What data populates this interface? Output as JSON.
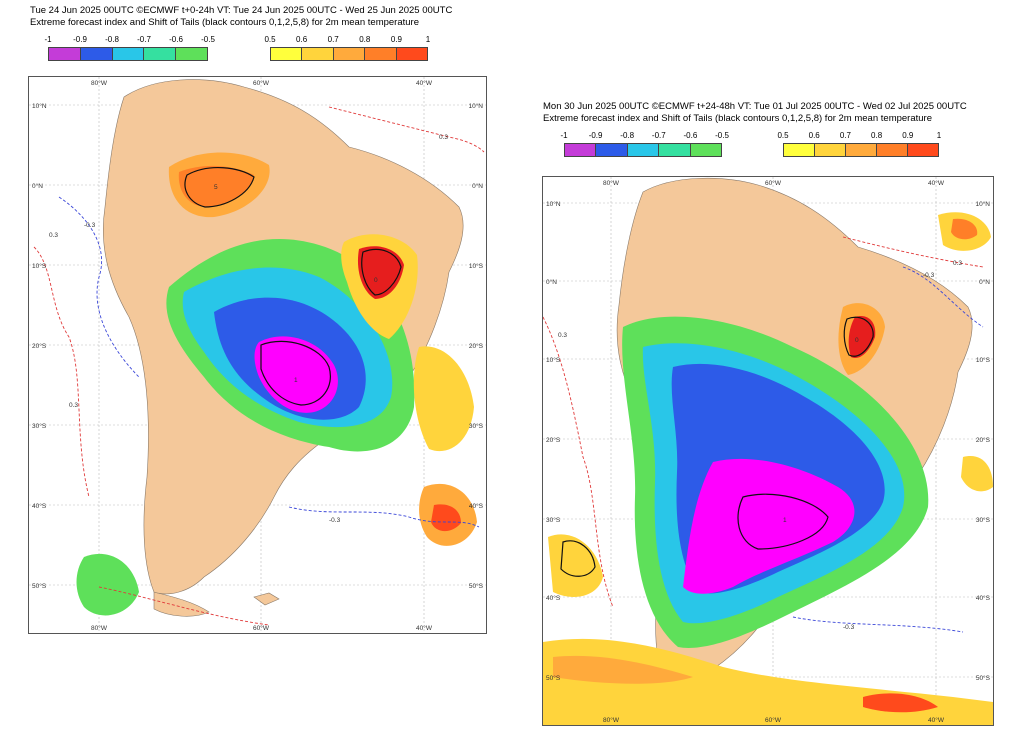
{
  "left": {
    "title_line1": "Tue 24 Jun 2025 00UTC ©ECMWF t+0-24h   VT: Tue 24 Jun 2025 00UTC - Wed 25 Jun 2025 00UTC",
    "title_line2": "Extreme forecast index and Shift of Tails (black contours 0,1,2,5,8) for 2m mean temperature",
    "lon_labels": [
      "80°W",
      "60°W",
      "40°W"
    ],
    "lat_labels": [
      "10°N",
      "0°N",
      "10°S",
      "20°S",
      "30°S",
      "40°S",
      "50°S"
    ],
    "contour_labels": [
      "-0.3",
      "0.3",
      "0.3",
      "0.3",
      "1",
      "0",
      "5",
      "-0.3"
    ]
  },
  "right": {
    "title_line1": "Mon 30 Jun 2025 00UTC ©ECMWF t+24-48h  VT: Tue 01 Jul 2025 00UTC - Wed 02 Jul 2025 00UTC",
    "title_line2": "Extreme forecast index and Shift of Tails (black contours 0,1,2,5,8) for 2m mean temperature",
    "lon_labels": [
      "80°W",
      "60°W",
      "40°W"
    ],
    "lat_labels": [
      "10°N",
      "0°N",
      "10°S",
      "20°S",
      "30°S",
      "40°S",
      "50°S"
    ],
    "contour_labels": [
      "-0.3",
      "0.3",
      "0.3",
      "1",
      "0",
      "-0.3"
    ]
  },
  "legend": {
    "cold_labels": [
      "-1",
      "-0.9",
      "-0.8",
      "-0.7",
      "-0.6",
      "-0.5"
    ],
    "warm_labels": [
      "0.5",
      "0.6",
      "0.7",
      "0.8",
      "0.9",
      "1"
    ],
    "cold_colors": [
      "#ff00ff",
      "#c43cd8",
      "#2d5be8",
      "#29c6e8",
      "#35e0a0",
      "#5ee05a"
    ],
    "warm_colors": [
      "#ffff3c",
      "#ffd43c",
      "#ffaa3c",
      "#ff7f28",
      "#ff4a1c",
      "#e61e1e"
    ]
  },
  "colors": {
    "land": "#f4c89a",
    "ocean": "#ffffff",
    "cold_contour": "#3a46d8",
    "warm_contour": "#e03a3a",
    "sot_contour": "#111111"
  }
}
